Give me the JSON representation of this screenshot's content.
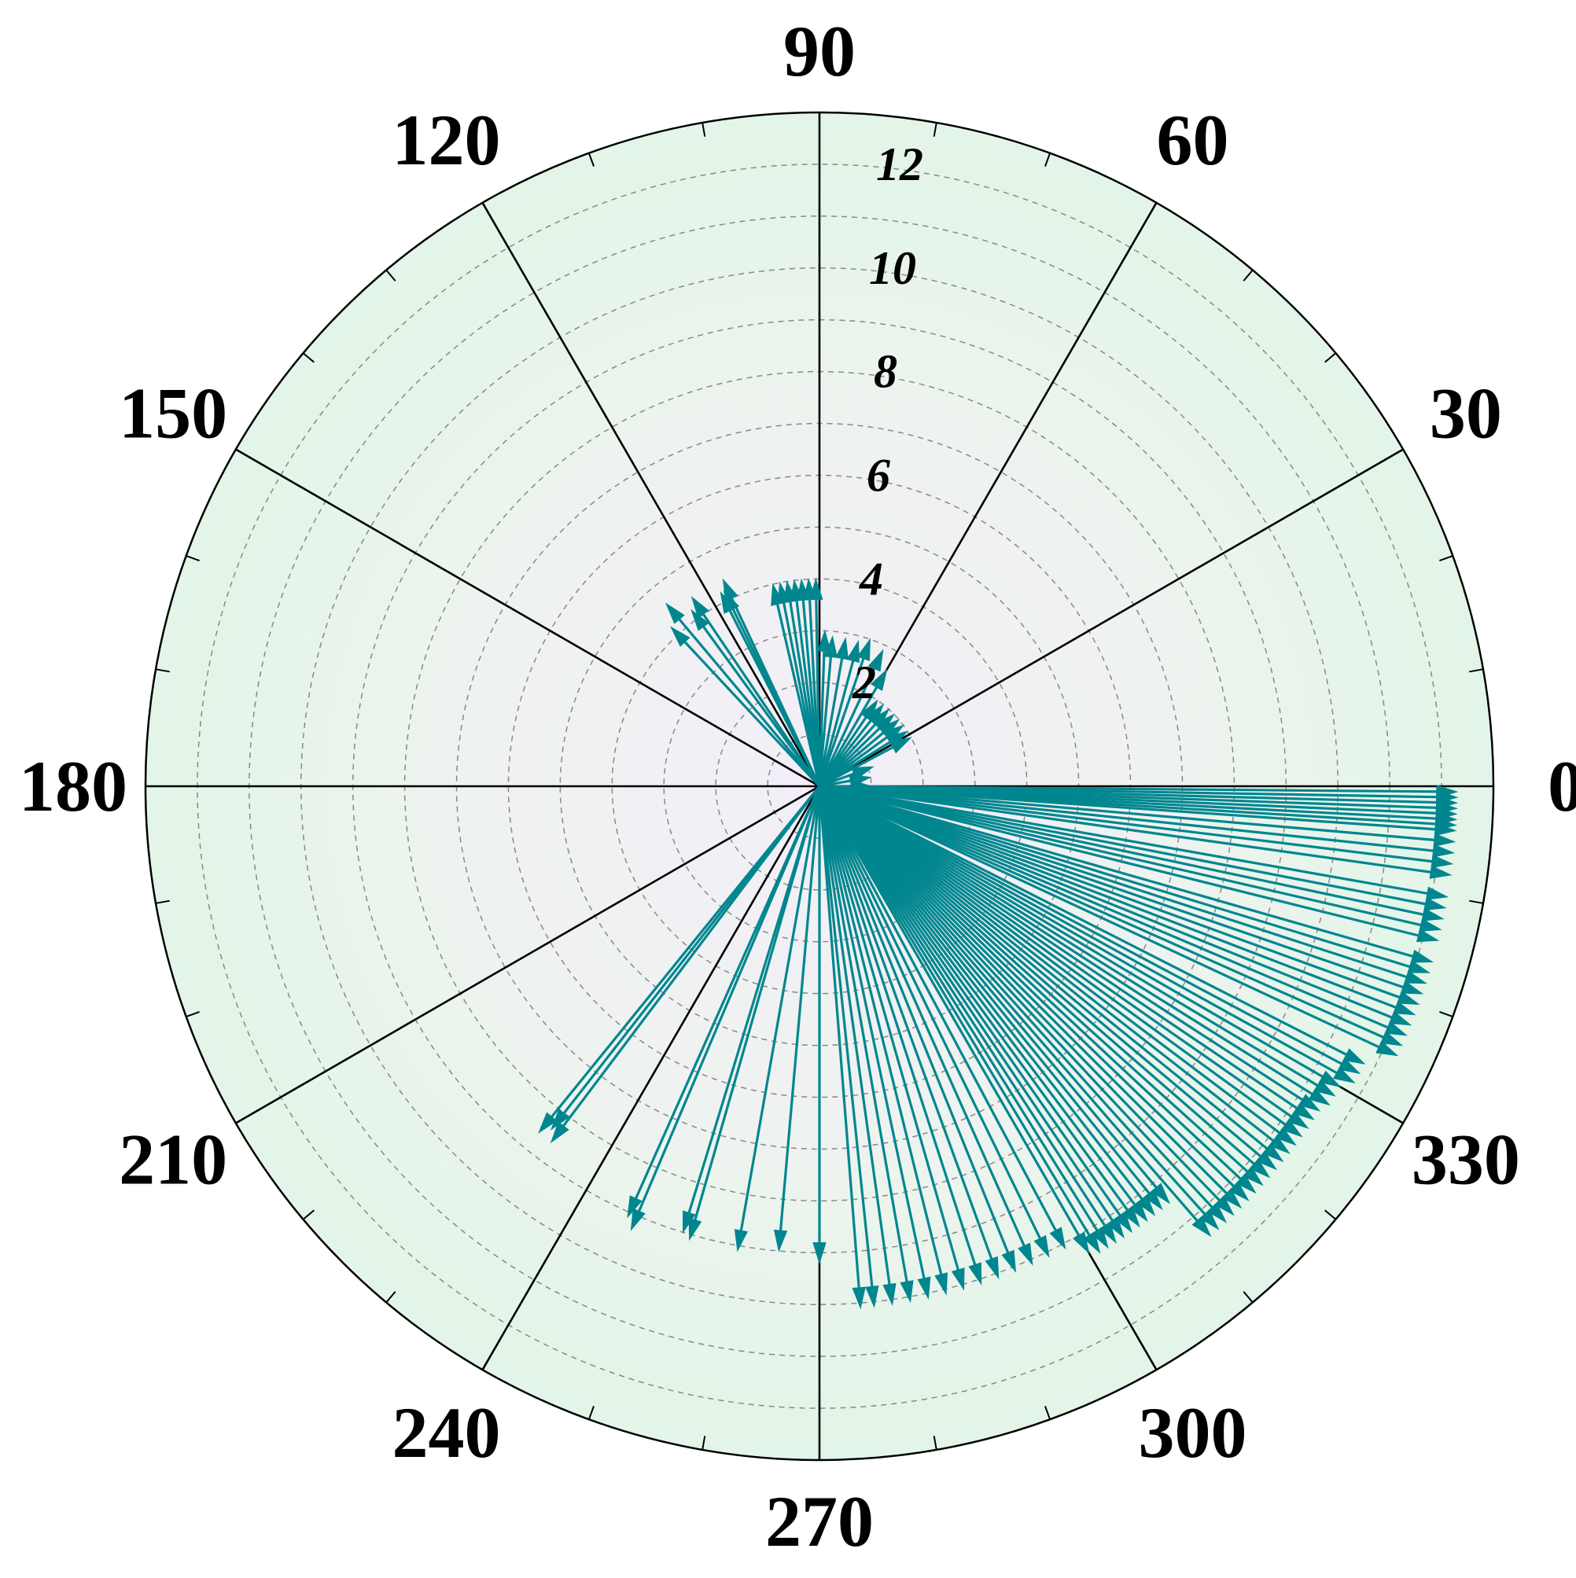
{
  "chart_data": {
    "type": "polar-vector",
    "angle_ticks": [
      "0",
      "30",
      "60",
      "90",
      "120",
      "150",
      "180",
      "210",
      "240",
      "270",
      "300",
      "330"
    ],
    "radial_ticks": [
      "2",
      "4",
      "6",
      "8",
      "10",
      "12"
    ],
    "rlim": [
      0,
      13
    ],
    "grid": true,
    "colors": {
      "arrow": "#00868f",
      "plot_outer": "#e3f5e8",
      "plot_inner": "#f2eef7",
      "grid": "#888888",
      "spoke": "#000000"
    },
    "series": [
      {
        "vectors": [
          {
            "angle": 115,
            "r": 4.4
          },
          {
            "angle": 116,
            "r": 4.2
          },
          {
            "angle": 117,
            "r": 4.2
          },
          {
            "angle": 124,
            "r": 4.4
          },
          {
            "angle": 126,
            "r": 4.2
          },
          {
            "angle": 130,
            "r": 4.6
          },
          {
            "angle": 133,
            "r": 4.2
          },
          {
            "angle": 91,
            "r": 4.0
          },
          {
            "angle": 93,
            "r": 4.0
          },
          {
            "angle": 95,
            "r": 4.0
          },
          {
            "angle": 97,
            "r": 4.0
          },
          {
            "angle": 99,
            "r": 4.0
          },
          {
            "angle": 101,
            "r": 4.0
          },
          {
            "angle": 103,
            "r": 4.0
          },
          {
            "angle": 88,
            "r": 3.0
          },
          {
            "angle": 85,
            "r": 2.9
          },
          {
            "angle": 80,
            "r": 2.9
          },
          {
            "angle": 75,
            "r": 2.9
          },
          {
            "angle": 71,
            "r": 3.0
          },
          {
            "angle": 65,
            "r": 2.9
          },
          {
            "angle": 60,
            "r": 2.6
          },
          {
            "angle": 56,
            "r": 2.0
          },
          {
            "angle": 52,
            "r": 2.0
          },
          {
            "angle": 48,
            "r": 2.0
          },
          {
            "angle": 44,
            "r": 2.0
          },
          {
            "angle": 40,
            "r": 2.0
          },
          {
            "angle": 36,
            "r": 2.0
          },
          {
            "angle": 32,
            "r": 2.0
          },
          {
            "angle": 28,
            "r": 2.0
          },
          {
            "angle": 20,
            "r": 1.1
          },
          {
            "angle": 10,
            "r": 1.0
          },
          {
            "angle": 0,
            "r": 1.0
          },
          {
            "angle": -0.5,
            "r": 12.3
          },
          {
            "angle": -1.0,
            "r": 12.3
          },
          {
            "angle": -1.5,
            "r": 12.3
          },
          {
            "angle": -2.0,
            "r": 12.3
          },
          {
            "angle": -2.5,
            "r": 12.3
          },
          {
            "angle": -3.0,
            "r": 12.3
          },
          {
            "angle": -3.5,
            "r": 12.3
          },
          {
            "angle": -4.0,
            "r": 12.3
          },
          {
            "angle": -5.0,
            "r": 12.3
          },
          {
            "angle": -6.0,
            "r": 12.3
          },
          {
            "angle": -7.0,
            "r": 12.3
          },
          {
            "angle": -8.0,
            "r": 12.3
          },
          {
            "angle": -10.0,
            "r": 12.3
          },
          {
            "angle": -11.0,
            "r": 12.3
          },
          {
            "angle": -12.0,
            "r": 12.3
          },
          {
            "angle": -13.0,
            "r": 12.3
          },
          {
            "angle": -14.0,
            "r": 12.3
          },
          {
            "angle": -16.0,
            "r": 12.3
          },
          {
            "angle": -17.0,
            "r": 12.3
          },
          {
            "angle": -18.0,
            "r": 12.3
          },
          {
            "angle": -19.0,
            "r": 12.3
          },
          {
            "angle": -20.0,
            "r": 12.3
          },
          {
            "angle": -21.0,
            "r": 12.3
          },
          {
            "angle": -22.0,
            "r": 12.3
          },
          {
            "angle": -23.0,
            "r": 12.3
          },
          {
            "angle": -24.0,
            "r": 12.3
          },
          {
            "angle": -25.0,
            "r": 12.3
          },
          {
            "angle": -27.0,
            "r": 11.8
          },
          {
            "angle": -28.0,
            "r": 11.8
          },
          {
            "angle": -29.0,
            "r": 11.8
          },
          {
            "angle": -30.0,
            "r": 11.6
          },
          {
            "angle": -31.0,
            "r": 11.6
          },
          {
            "angle": -32.0,
            "r": 11.6
          },
          {
            "angle": -33.0,
            "r": 11.5
          },
          {
            "angle": -34.0,
            "r": 11.5
          },
          {
            "angle": -35.0,
            "r": 11.5
          },
          {
            "angle": -36.0,
            "r": 11.5
          },
          {
            "angle": -37.0,
            "r": 11.5
          },
          {
            "angle": -38.0,
            "r": 11.5
          },
          {
            "angle": -39.0,
            "r": 11.5
          },
          {
            "angle": -40.0,
            "r": 11.5
          },
          {
            "angle": -41.0,
            "r": 11.5
          },
          {
            "angle": -42.0,
            "r": 11.5
          },
          {
            "angle": -43.0,
            "r": 11.5
          },
          {
            "angle": -44.0,
            "r": 11.5
          },
          {
            "angle": -45.0,
            "r": 11.5
          },
          {
            "angle": -46.0,
            "r": 11.5
          },
          {
            "angle": -47.0,
            "r": 11.5
          },
          {
            "angle": -48.0,
            "r": 11.5
          },
          {
            "angle": -49.0,
            "r": 11.5
          },
          {
            "angle": -50.0,
            "r": 10.5
          },
          {
            "angle": -51.0,
            "r": 10.5
          },
          {
            "angle": -52.0,
            "r": 10.5
          },
          {
            "angle": -53.0,
            "r": 10.5
          },
          {
            "angle": -54.0,
            "r": 10.5
          },
          {
            "angle": -55.0,
            "r": 10.5
          },
          {
            "angle": -56.0,
            "r": 10.5
          },
          {
            "angle": -57.0,
            "r": 10.5
          },
          {
            "angle": -58.0,
            "r": 10.5
          },
          {
            "angle": -59.0,
            "r": 10.5
          },
          {
            "angle": -60.0,
            "r": 10.4
          },
          {
            "angle": -62.0,
            "r": 10.1
          },
          {
            "angle": -64.0,
            "r": 10.1
          },
          {
            "angle": -66.0,
            "r": 10.1
          },
          {
            "angle": -68.0,
            "r": 10.1
          },
          {
            "angle": -70.0,
            "r": 10.1
          },
          {
            "angle": -72.0,
            "r": 10.1
          },
          {
            "angle": -74.0,
            "r": 10.1
          },
          {
            "angle": -76.0,
            "r": 10.1
          },
          {
            "angle": -78.0,
            "r": 10.1
          },
          {
            "angle": -80.0,
            "r": 10.1
          },
          {
            "angle": -82.0,
            "r": 10.1
          },
          {
            "angle": -84.0,
            "r": 10.1
          },
          {
            "angle": -85.5,
            "r": 10.1
          },
          {
            "angle": -90.0,
            "r": 9.2
          },
          {
            "angle": -95.0,
            "r": 9.0
          },
          {
            "angle": -100.0,
            "r": 9.1
          },
          {
            "angle": -106.0,
            "r": 9.1
          },
          {
            "angle": -107.0,
            "r": 9.0
          },
          {
            "angle": -113.0,
            "r": 9.3
          },
          {
            "angle": -114.0,
            "r": 9.1
          },
          {
            "angle": -127.0,
            "r": 8.6
          },
          {
            "angle": -128.0,
            "r": 8.4
          },
          {
            "angle": -129.0,
            "r": 8.6
          }
        ]
      }
    ]
  }
}
